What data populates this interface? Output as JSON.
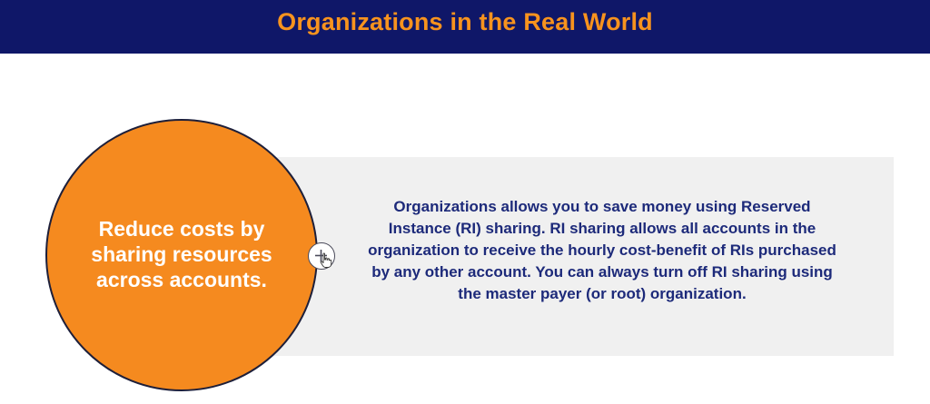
{
  "header": {
    "title": "Organizations in the Real World"
  },
  "circle": {
    "text": "Reduce costs by sharing resources across accounts."
  },
  "info_panel": {
    "text": "Organizations allows you to save money using Reserved Instance (RI) sharing. RI sharing allows all accounts in the organization to receive the hourly cost-benefit of RIs purchased by any other account. You can always turn off RI sharing using the master payer (or root) organization."
  },
  "icons": {
    "expand": "plus-icon",
    "pointer": "hand-pointer-icon"
  },
  "colors": {
    "header_bg": "#0f1768",
    "title": "#f7931e",
    "circle": "#f58a1f",
    "panel_bg": "#f0f0f0",
    "body_text": "#1d2a7a"
  }
}
